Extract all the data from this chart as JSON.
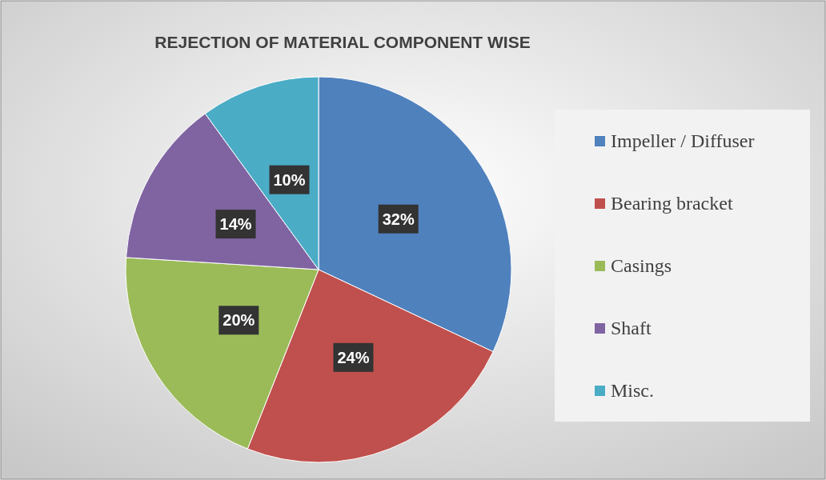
{
  "chart_data": {
    "type": "pie",
    "title": "REJECTION OF MATERIAL COMPONENT WISE",
    "categories": [
      "Impeller / Diffuser",
      "Bearing bracket",
      "Casings",
      "Shaft",
      "Misc."
    ],
    "values": [
      32,
      24,
      20,
      14,
      10
    ],
    "colors": [
      "#4f81bd",
      "#c0504d",
      "#9bbb59",
      "#8064a2",
      "#4bacc6"
    ],
    "value_labels": [
      "32%",
      "24%",
      "20%",
      "14%",
      "10%"
    ],
    "legend": "right"
  }
}
